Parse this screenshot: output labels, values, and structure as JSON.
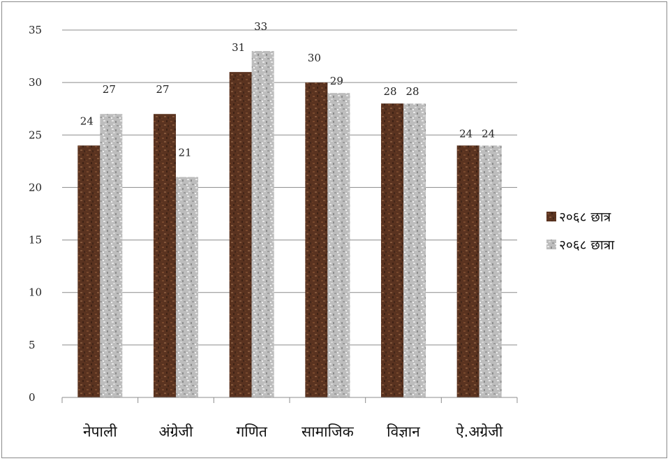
{
  "chart_data": {
    "type": "bar",
    "categories": [
      "नेपाली",
      "अंग्रेजी",
      "गणित",
      "सामाजिक",
      "विज्ञान",
      "ऐ.अग्रेजी"
    ],
    "series": [
      {
        "name": "२०६८ छात्र",
        "values": [
          24,
          27,
          31,
          30,
          28,
          24
        ],
        "color": "#5a3320"
      },
      {
        "name": "२०६८ छात्रा",
        "values": [
          27,
          21,
          33,
          29,
          28,
          24
        ],
        "color": "#b8b8b8"
      }
    ],
    "yticks": [
      "0",
      "5",
      "10",
      "15",
      "20",
      "25",
      "30",
      "35"
    ],
    "ylim": [
      0,
      35
    ],
    "grid": true,
    "legend_position": "right"
  }
}
